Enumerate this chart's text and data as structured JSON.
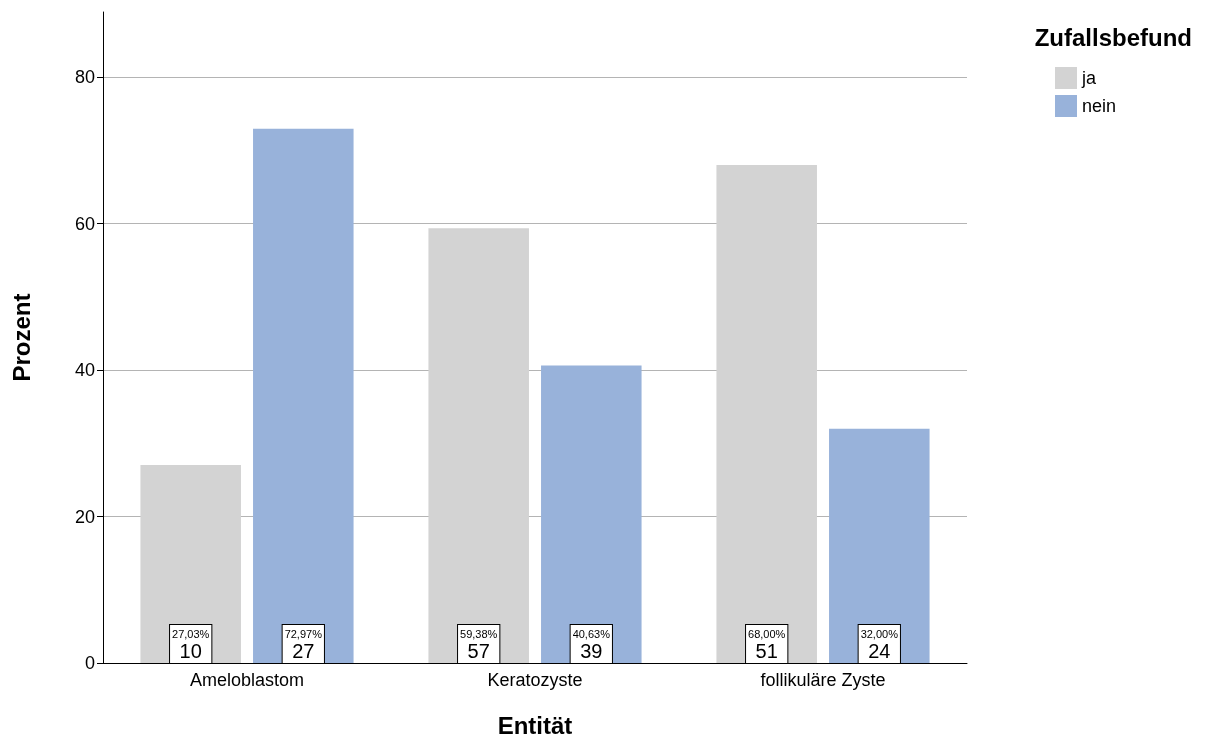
{
  "chart_data": {
    "type": "bar",
    "xlabel": "Entität",
    "ylabel": "Prozent",
    "legend_title": "Zufallsbefund",
    "categories": [
      "Ameloblastom",
      "Keratozyste",
      "follikuläre Zyste"
    ],
    "series": [
      {
        "name": "ja",
        "color": "#d3d3d3",
        "values": [
          27.03,
          59.38,
          68.0
        ],
        "value_labels": [
          "27,03%\n10",
          "59,38%\n57",
          "68,00%\n51"
        ]
      },
      {
        "name": "nein",
        "color": "#98b2da",
        "values": [
          72.97,
          40.63,
          32.0
        ],
        "value_labels": [
          "72,97%\n27",
          "40,63%\n39",
          "32,00%\n24"
        ]
      }
    ],
    "ylim": [
      0,
      88.9
    ],
    "yticks": [
      0,
      20,
      40,
      60,
      80
    ],
    "grid": "y",
    "legend": "top right"
  }
}
